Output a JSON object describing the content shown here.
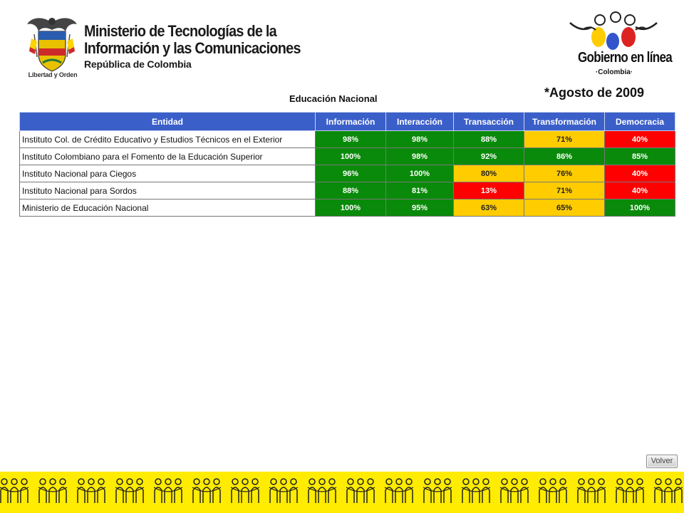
{
  "header": {
    "ministry_lines": [
      "Ministerio de Tecnologías de la",
      "Información y las Comunicaciones"
    ],
    "ministry_sub": "República de Colombia",
    "seal_motto": "Libertad y Orden",
    "gel_title": "Gobierno en línea",
    "gel_sub": "·Colombia·"
  },
  "date_label": "*Agosto de 2009",
  "table_title": "Educación Nacional",
  "table": {
    "headers": [
      "Entidad",
      "Información",
      "Interacción",
      "Transacción",
      "Transformación",
      "Democracia"
    ],
    "rows": [
      {
        "name": "Instituto Col. de Crédito Educativo y Estudios Técnicos en el Exterior",
        "values": [
          "98%",
          "98%",
          "88%",
          "71%",
          "40%"
        ],
        "levels": [
          "green",
          "green",
          "green",
          "yellow",
          "red"
        ]
      },
      {
        "name": "Instituto Colombiano para el Fomento de la Educación Superior",
        "values": [
          "100%",
          "98%",
          "92%",
          "86%",
          "85%"
        ],
        "levels": [
          "green",
          "green",
          "green",
          "green",
          "green"
        ]
      },
      {
        "name": "Instituto Nacional para Ciegos",
        "values": [
          "96%",
          "100%",
          "80%",
          "76%",
          "40%"
        ],
        "levels": [
          "green",
          "green",
          "yellow",
          "yellow",
          "red"
        ]
      },
      {
        "name": "Instituto Nacional para Sordos",
        "values": [
          "88%",
          "81%",
          "13%",
          "71%",
          "40%"
        ],
        "levels": [
          "green",
          "green",
          "red",
          "yellow",
          "red"
        ]
      },
      {
        "name": "Ministerio de Educación Nacional",
        "values": [
          "100%",
          "95%",
          "63%",
          "65%",
          "100%"
        ],
        "levels": [
          "green",
          "green",
          "yellow",
          "yellow",
          "green"
        ]
      }
    ]
  },
  "colors": {
    "header_blue": "#3b5fc9",
    "green": "#0a8a0a",
    "yellow": "#ffcc00",
    "red": "#ff0000",
    "footer_yellow": "#ffec00"
  },
  "volver_label": "Volver",
  "icons": [
    "colombia-coat-of-arms-icon",
    "gobierno-en-linea-figures-icon",
    "people-pattern-icon"
  ]
}
